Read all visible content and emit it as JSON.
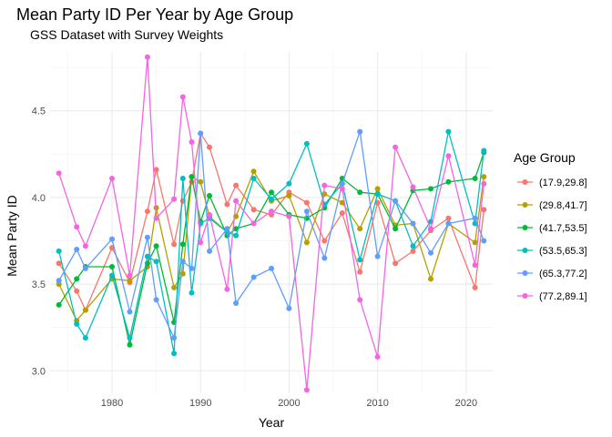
{
  "chart_data": {
    "type": "line",
    "title": "Mean Party ID Per Year by Age Group",
    "subtitle": "GSS Dataset with Survey Weights",
    "xlabel": "Year",
    "ylabel": "Mean Party ID",
    "xlim": [
      1973,
      2023
    ],
    "ylim": [
      2.87,
      4.84
    ],
    "x_ticks": [
      1980,
      1990,
      2000,
      2010,
      2020
    ],
    "y_ticks": [
      3.0,
      3.5,
      4.0,
      4.5
    ],
    "x_tick_labels": [
      "1980",
      "1990",
      "2000",
      "2010",
      "2020"
    ],
    "y_tick_labels": [
      "3.0",
      "3.5",
      "4.0",
      "4.5"
    ],
    "grid": true,
    "legend": {
      "title": "Age Group",
      "position": "right"
    },
    "x": [
      1974,
      1976,
      1977,
      1980,
      1982,
      1984,
      1985,
      1987,
      1988,
      1989,
      1990,
      1991,
      1993,
      1994,
      1996,
      1998,
      2000,
      2002,
      2004,
      2006,
      2008,
      2010,
      2012,
      2014,
      2016,
      2018,
      2021,
      2022
    ],
    "series": [
      {
        "name": "(17.9,29.8]",
        "color": "#F8766D",
        "values": [
          3.62,
          3.46,
          3.35,
          3.71,
          3.51,
          3.92,
          4.16,
          3.73,
          3.98,
          4.09,
          4.37,
          4.29,
          3.96,
          4.07,
          3.93,
          3.9,
          4.03,
          3.97,
          3.75,
          3.91,
          3.57,
          3.97,
          3.62,
          3.69,
          3.81,
          3.88,
          3.48,
          3.93
        ]
      },
      {
        "name": "(29.8,41.7]",
        "color": "#B79F00",
        "values": [
          3.5,
          3.29,
          3.35,
          3.53,
          3.52,
          3.6,
          3.94,
          3.48,
          3.56,
          4.12,
          4.09,
          3.89,
          3.8,
          3.89,
          4.15,
          3.98,
          4.01,
          3.74,
          4.02,
          3.97,
          3.82,
          4.05,
          3.84,
          3.85,
          3.53,
          3.85,
          3.74,
          4.12
        ]
      },
      {
        "name": "(41.7,53.5]",
        "color": "#00BA38",
        "values": [
          3.38,
          3.53,
          3.6,
          3.6,
          3.15,
          3.62,
          3.72,
          3.28,
          3.73,
          4.12,
          3.86,
          4.01,
          3.78,
          3.82,
          3.85,
          4.03,
          3.9,
          3.88,
          3.94,
          4.11,
          4.03,
          4.02,
          3.82,
          4.04,
          4.05,
          4.09,
          4.11,
          4.26
        ]
      },
      {
        "name": "(53.5,65.3]",
        "color": "#00BFC4",
        "values": [
          3.69,
          3.27,
          3.19,
          3.55,
          3.19,
          3.66,
          3.63,
          3.1,
          4.11,
          3.45,
          3.85,
          3.88,
          3.8,
          3.78,
          4.11,
          3.99,
          4.08,
          4.31,
          3.96,
          4.08,
          3.64,
          4.02,
          3.98,
          3.72,
          3.86,
          4.38,
          3.85,
          4.27
        ]
      },
      {
        "name": "(65.3,77.2]",
        "color": "#619CFF",
        "values": [
          3.52,
          3.7,
          3.59,
          3.76,
          3.34,
          3.77,
          3.41,
          3.19,
          3.63,
          3.59,
          4.37,
          3.69,
          3.82,
          3.39,
          3.54,
          3.59,
          3.36,
          3.92,
          3.65,
          4.08,
          4.38,
          3.66,
          3.98,
          3.85,
          3.68,
          3.85,
          3.88,
          3.75
        ]
      },
      {
        "name": "(77.2,89.1]",
        "color": "#F564E3",
        "values": [
          4.14,
          3.83,
          3.72,
          4.11,
          3.55,
          4.81,
          3.88,
          3.99,
          4.58,
          4.32,
          3.74,
          3.9,
          3.47,
          3.98,
          3.85,
          3.92,
          3.89,
          2.89,
          4.07,
          4.05,
          3.41,
          3.08,
          4.29,
          4.06,
          3.82,
          4.24,
          3.61,
          4.08
        ]
      }
    ]
  }
}
